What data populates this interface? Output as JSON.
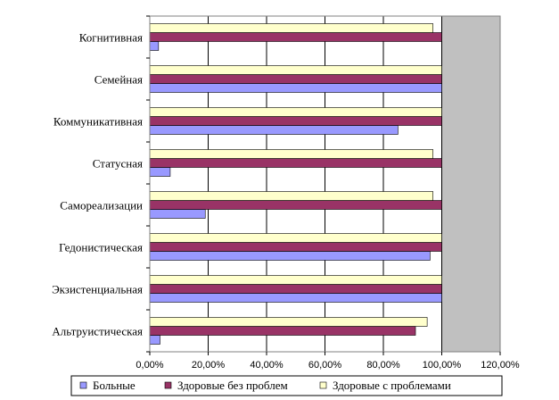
{
  "chart_data": {
    "type": "bar",
    "orientation": "horizontal",
    "categories": [
      "Альтруистическая",
      "Экзистенциальная",
      "Гедонистическая",
      "Самореализации",
      "Статусная",
      "Коммуникативная",
      "Семейная",
      "Когнитивная"
    ],
    "series": [
      {
        "name": "Больные",
        "color": "#9999ff",
        "values": [
          3.5,
          100,
          96,
          19,
          7,
          85,
          100,
          3
        ]
      },
      {
        "name": "Здоровые без проблем",
        "color": "#993366",
        "values": [
          91,
          100,
          100,
          100,
          100,
          100,
          100,
          100
        ]
      },
      {
        "name": "Здоровые с проблемами",
        "color": "#ffffcc",
        "values": [
          95,
          100,
          100,
          97,
          97,
          100,
          100,
          97
        ]
      }
    ],
    "xlim": [
      0,
      120
    ],
    "x_ticks": [
      "0,00%",
      "20,00%",
      "40,00%",
      "60,00%",
      "80,00%",
      "100,00%",
      "120,00%"
    ],
    "grid": true,
    "plot_background": "#c0c0c0",
    "legend_position": "bottom",
    "title": "",
    "xlabel": "",
    "ylabel": ""
  }
}
